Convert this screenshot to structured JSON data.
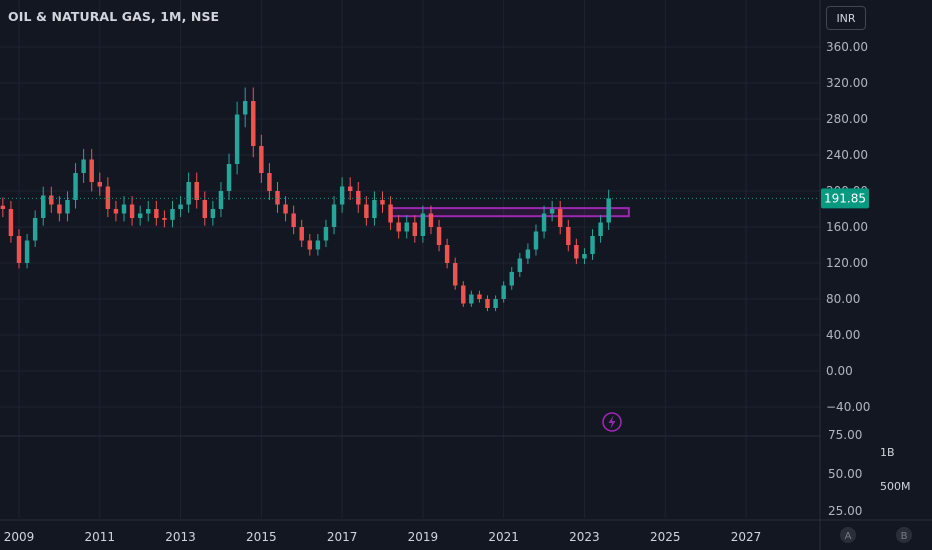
{
  "header": {
    "title": "OIL & NATURAL GAS, 1M, NSE"
  },
  "currency_button": {
    "label": "INR"
  },
  "price_axis": {
    "ticks": [
      "360.00",
      "320.00",
      "280.00",
      "240.00",
      "200.00",
      "160.00",
      "120.00",
      "80.00",
      "40.00",
      "0.00",
      "−40.00"
    ],
    "last_price_label": "191.85"
  },
  "volume_axis": {
    "left_ticks": [
      "75.00",
      "50.00",
      "25.00"
    ],
    "right_ticks": [
      "1B",
      "500M"
    ]
  },
  "time_axis": {
    "ticks": [
      "2009",
      "2011",
      "2013",
      "2015",
      "2017",
      "2019",
      "2021",
      "2023",
      "2025",
      "2027"
    ]
  },
  "scale_buttons": {
    "a": "A",
    "b": "B"
  },
  "colors": {
    "up": "#26a69a",
    "down": "#ef5350",
    "zone": "#9c27b0",
    "last_price": "#089981",
    "background": "#131722"
  },
  "icons": {
    "alert": "lightning-bolt-icon"
  },
  "chart_data": {
    "type": "candlestick",
    "title": "OIL & NATURAL GAS, 1M, NSE",
    "interval": "1M",
    "currency": "INR",
    "ylim": [
      -50,
      375
    ],
    "xlim": [
      2008.6,
      2028.6
    ],
    "grid": true,
    "last_price": 191.85,
    "resistance_zone": {
      "x_start": 2018.2,
      "x_end": 2024.1,
      "y_low": 172,
      "y_high": 181
    },
    "x": [
      2008.6,
      2008.8,
      2009.0,
      2009.2,
      2009.4,
      2009.6,
      2009.8,
      2010.0,
      2010.2,
      2010.4,
      2010.6,
      2010.8,
      2011.0,
      2011.2,
      2011.4,
      2011.6,
      2011.8,
      2012.0,
      2012.2,
      2012.4,
      2012.6,
      2012.8,
      2013.0,
      2013.2,
      2013.4,
      2013.6,
      2013.8,
      2014.0,
      2014.2,
      2014.4,
      2014.6,
      2014.8,
      2015.0,
      2015.2,
      2015.4,
      2015.6,
      2015.8,
      2016.0,
      2016.2,
      2016.4,
      2016.6,
      2016.8,
      2017.0,
      2017.2,
      2017.4,
      2017.6,
      2017.8,
      2018.0,
      2018.2,
      2018.4,
      2018.6,
      2018.8,
      2019.0,
      2019.2,
      2019.4,
      2019.6,
      2019.8,
      2020.0,
      2020.2,
      2020.4,
      2020.6,
      2020.8,
      2021.0,
      2021.2,
      2021.4,
      2021.6,
      2021.8,
      2022.0,
      2022.2,
      2022.4,
      2022.6,
      2022.8,
      2023.0,
      2023.2,
      2023.4,
      2023.6
    ],
    "close": [
      180,
      150,
      120,
      145,
      170,
      195,
      185,
      175,
      190,
      220,
      235,
      210,
      205,
      180,
      175,
      185,
      170,
      175,
      180,
      170,
      168,
      180,
      185,
      210,
      190,
      170,
      180,
      200,
      230,
      285,
      300,
      250,
      220,
      200,
      185,
      175,
      160,
      145,
      135,
      145,
      160,
      185,
      205,
      200,
      185,
      170,
      190,
      185,
      165,
      155,
      165,
      150,
      175,
      160,
      140,
      120,
      95,
      75,
      85,
      80,
      70,
      80,
      95,
      110,
      125,
      135,
      155,
      175,
      180,
      160,
      140,
      125,
      130,
      150,
      165,
      191.85
    ]
  }
}
